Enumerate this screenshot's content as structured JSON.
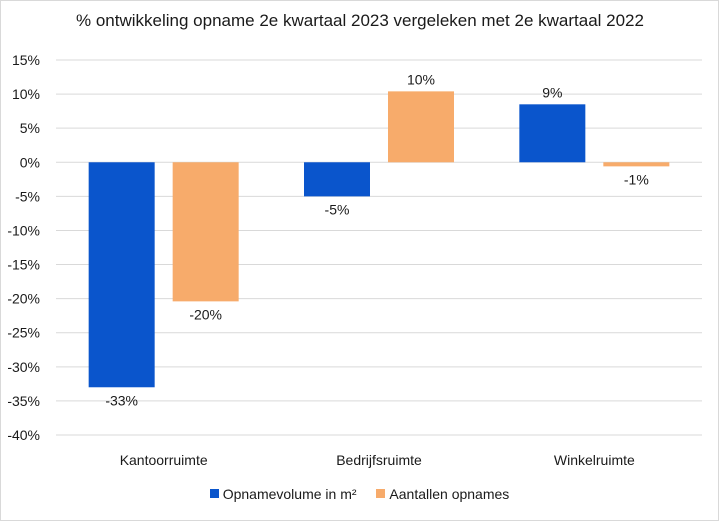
{
  "chart_data": {
    "type": "bar",
    "title": "% ontwikkeling opname 2e kwartaal 2023 vergeleken met 2e kwartaal 2022",
    "xlabel": "",
    "ylabel": "",
    "categories": [
      "Kantoorruimte",
      "Bedrijfsruimte",
      "Winkelruimte"
    ],
    "series": [
      {
        "name": "Opnamevolume in m²",
        "color": "#0a55cc",
        "values": [
          -33,
          -5,
          8.5
        ],
        "labels": [
          "-33%",
          "-5%",
          "9%"
        ]
      },
      {
        "name": "Aantallen opnames",
        "color": "#f7ab6b",
        "values": [
          -20.4,
          10.4,
          -0.6
        ],
        "labels": [
          "-20%",
          "10%",
          "-1%"
        ]
      }
    ],
    "ylim": [
      -40,
      15
    ],
    "yticks": [
      15,
      10,
      5,
      0,
      -5,
      -10,
      -15,
      -20,
      -25,
      -30,
      -35,
      -40
    ],
    "ytick_labels": [
      "15%",
      "10%",
      "5%",
      "0%",
      "-5%",
      "-10%",
      "-15%",
      "-20%",
      "-25%",
      "-30%",
      "-35%",
      "-40%"
    ],
    "grid": true,
    "legend": "bottom"
  }
}
